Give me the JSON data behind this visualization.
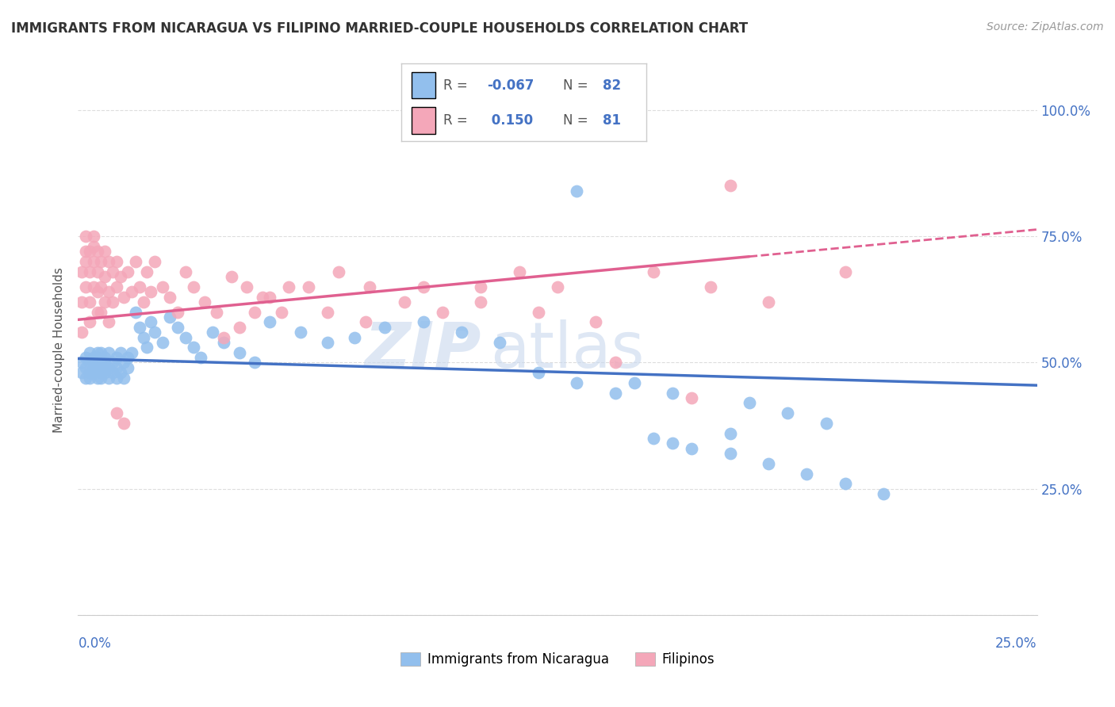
{
  "title": "IMMIGRANTS FROM NICARAGUA VS FILIPINO MARRIED-COUPLE HOUSEHOLDS CORRELATION CHART",
  "source": "Source: ZipAtlas.com",
  "ylabel": "Married-couple Households",
  "y_ticks": [
    0.0,
    0.25,
    0.5,
    0.75,
    1.0
  ],
  "y_tick_labels": [
    "",
    "25.0%",
    "50.0%",
    "75.0%",
    "100.0%"
  ],
  "x_range": [
    0.0,
    0.25
  ],
  "y_range": [
    0.0,
    1.05
  ],
  "legend_blue_R": "-0.067",
  "legend_blue_N": "82",
  "legend_pink_R": "0.150",
  "legend_pink_N": "81",
  "blue_color": "#92BFED",
  "pink_color": "#F4A7B9",
  "blue_line_color": "#4472C4",
  "pink_line_color": "#E06090",
  "watermark_ZIP": "ZIP",
  "watermark_atlas": "atlas",
  "blue_scatter_x": [
    0.001,
    0.001,
    0.002,
    0.002,
    0.002,
    0.003,
    0.003,
    0.003,
    0.003,
    0.004,
    0.004,
    0.004,
    0.004,
    0.005,
    0.005,
    0.005,
    0.005,
    0.006,
    0.006,
    0.006,
    0.006,
    0.007,
    0.007,
    0.007,
    0.007,
    0.008,
    0.008,
    0.008,
    0.009,
    0.009,
    0.01,
    0.01,
    0.01,
    0.011,
    0.011,
    0.012,
    0.012,
    0.013,
    0.013,
    0.014,
    0.015,
    0.016,
    0.017,
    0.018,
    0.019,
    0.02,
    0.022,
    0.024,
    0.026,
    0.028,
    0.03,
    0.032,
    0.035,
    0.038,
    0.042,
    0.046,
    0.05,
    0.058,
    0.065,
    0.072,
    0.08,
    0.09,
    0.1,
    0.11,
    0.12,
    0.13,
    0.14,
    0.15,
    0.16,
    0.17,
    0.18,
    0.19,
    0.2,
    0.21,
    0.13,
    0.145,
    0.155,
    0.175,
    0.185,
    0.195,
    0.17,
    0.155
  ],
  "blue_scatter_y": [
    0.48,
    0.5,
    0.47,
    0.49,
    0.51,
    0.48,
    0.5,
    0.52,
    0.47,
    0.49,
    0.51,
    0.48,
    0.5,
    0.47,
    0.49,
    0.51,
    0.52,
    0.48,
    0.5,
    0.47,
    0.52,
    0.49,
    0.51,
    0.48,
    0.5,
    0.47,
    0.49,
    0.52,
    0.5,
    0.48,
    0.51,
    0.49,
    0.47,
    0.52,
    0.48,
    0.5,
    0.47,
    0.51,
    0.49,
    0.52,
    0.6,
    0.57,
    0.55,
    0.53,
    0.58,
    0.56,
    0.54,
    0.59,
    0.57,
    0.55,
    0.53,
    0.51,
    0.56,
    0.54,
    0.52,
    0.5,
    0.58,
    0.56,
    0.54,
    0.55,
    0.57,
    0.58,
    0.56,
    0.54,
    0.48,
    0.46,
    0.44,
    0.35,
    0.33,
    0.32,
    0.3,
    0.28,
    0.26,
    0.24,
    0.84,
    0.46,
    0.44,
    0.42,
    0.4,
    0.38,
    0.36,
    0.34
  ],
  "pink_scatter_x": [
    0.001,
    0.001,
    0.001,
    0.002,
    0.002,
    0.002,
    0.002,
    0.003,
    0.003,
    0.003,
    0.003,
    0.004,
    0.004,
    0.004,
    0.004,
    0.005,
    0.005,
    0.005,
    0.005,
    0.006,
    0.006,
    0.006,
    0.007,
    0.007,
    0.007,
    0.008,
    0.008,
    0.008,
    0.009,
    0.009,
    0.01,
    0.01,
    0.011,
    0.012,
    0.013,
    0.014,
    0.015,
    0.016,
    0.017,
    0.018,
    0.019,
    0.02,
    0.022,
    0.024,
    0.026,
    0.028,
    0.03,
    0.033,
    0.036,
    0.04,
    0.044,
    0.048,
    0.053,
    0.06,
    0.068,
    0.076,
    0.085,
    0.095,
    0.105,
    0.115,
    0.125,
    0.038,
    0.042,
    0.046,
    0.05,
    0.055,
    0.065,
    0.075,
    0.09,
    0.105,
    0.12,
    0.135,
    0.15,
    0.165,
    0.18,
    0.2,
    0.16,
    0.14,
    0.17,
    0.01,
    0.012
  ],
  "pink_scatter_y": [
    0.56,
    0.62,
    0.68,
    0.65,
    0.7,
    0.72,
    0.75,
    0.58,
    0.62,
    0.68,
    0.72,
    0.65,
    0.7,
    0.73,
    0.75,
    0.6,
    0.64,
    0.68,
    0.72,
    0.6,
    0.65,
    0.7,
    0.62,
    0.67,
    0.72,
    0.58,
    0.64,
    0.7,
    0.62,
    0.68,
    0.65,
    0.7,
    0.67,
    0.63,
    0.68,
    0.64,
    0.7,
    0.65,
    0.62,
    0.68,
    0.64,
    0.7,
    0.65,
    0.63,
    0.6,
    0.68,
    0.65,
    0.62,
    0.6,
    0.67,
    0.65,
    0.63,
    0.6,
    0.65,
    0.68,
    0.65,
    0.62,
    0.6,
    0.65,
    0.68,
    0.65,
    0.55,
    0.57,
    0.6,
    0.63,
    0.65,
    0.6,
    0.58,
    0.65,
    0.62,
    0.6,
    0.58,
    0.68,
    0.65,
    0.62,
    0.68,
    0.43,
    0.5,
    0.85,
    0.4,
    0.38
  ],
  "blue_trend_x": [
    0.0,
    0.25
  ],
  "blue_trend_y": [
    0.508,
    0.455
  ],
  "pink_trend_x": [
    0.0,
    0.21
  ],
  "pink_trend_y": [
    0.585,
    0.735
  ],
  "background_color": "#FFFFFF",
  "grid_color": "#DDDDDD",
  "title_color": "#333333",
  "tick_label_color": "#4472C4"
}
